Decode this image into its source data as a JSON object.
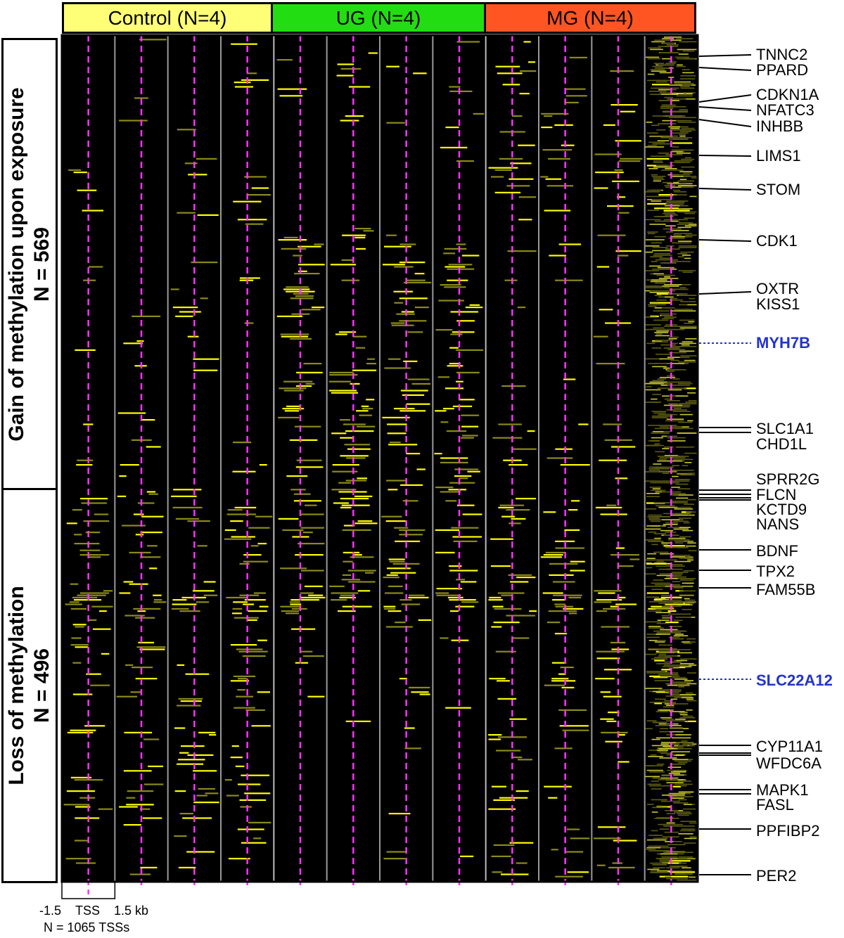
{
  "groups": [
    {
      "label": "Control (N=4)",
      "color": "#ffff77"
    },
    {
      "label": "UG (N=4)",
      "color": "#22dd11"
    },
    {
      "label": "MG (N=4)",
      "color": "#ff5522"
    }
  ],
  "side_labels": {
    "gain_line1": "Gain of methylation upon exposure",
    "gain_line2": "N = 569",
    "loss_line1": "Loss of methylation",
    "loss_line2": "N = 496"
  },
  "footer": {
    "left_tick": "-1.5",
    "tss": "TSS",
    "right_tick": "1.5 kb",
    "n_tss": "N = 1065 TSSs"
  },
  "colors": {
    "heat_background": "#000000",
    "heat_high": "#ffff00",
    "tss_line": "#ff33ff",
    "column_divider": "#999999",
    "highlight_gene": "#2233cc"
  },
  "chart_data": {
    "type": "heatmap",
    "title": "",
    "columns_per_group": 4,
    "column_groups": [
      "Control (N=4)",
      "UG (N=4)",
      "MG (N=4)"
    ],
    "extra_column": "mean profile",
    "x_range_kb": [
      -1.5,
      1.5
    ],
    "x_center_label": "TSS",
    "total_rows": 1065,
    "row_blocks": [
      {
        "name": "Gain of methylation upon exposure",
        "n": 569
      },
      {
        "name": "Loss of methylation",
        "n": 496
      }
    ],
    "gene_labels": [
      {
        "name": "TNNC2",
        "row_fraction": 0.02
      },
      {
        "name": "PPARD",
        "row_fraction": 0.038
      },
      {
        "name": "CDKN1A",
        "row_fraction": 0.075
      },
      {
        "name": "NFATC3",
        "row_fraction": 0.082
      },
      {
        "name": "INHBB",
        "row_fraction": 0.1
      },
      {
        "name": "LIMS1",
        "row_fraction": 0.143
      },
      {
        "name": "STOM",
        "row_fraction": 0.183
      },
      {
        "name": "CDK1",
        "row_fraction": 0.243
      },
      {
        "name": "OXTR",
        "row_fraction": 0.31
      },
      {
        "name": "KISS1",
        "row_fraction": 0.31
      },
      {
        "name": "MYH7B",
        "row_fraction": 0.37,
        "highlight": true
      },
      {
        "name": "SLC1A1",
        "row_fraction": 0.47
      },
      {
        "name": "CHD1L",
        "row_fraction": 0.475
      },
      {
        "name": "SPRR2G",
        "row_fraction": 0.53
      },
      {
        "name": "FLCN",
        "row_fraction": 0.535
      },
      {
        "name": "KCTD9",
        "row_fraction": 0.538
      },
      {
        "name": "NANS",
        "row_fraction": 0.54
      },
      {
        "name": "BDNF",
        "row_fraction": 0.6
      },
      {
        "name": "TPX2",
        "row_fraction": 0.627
      },
      {
        "name": "FAM55B",
        "row_fraction": 0.65
      },
      {
        "name": "SLC22A12",
        "row_fraction": 0.75,
        "highlight": true
      },
      {
        "name": "CYP11A1",
        "row_fraction": 0.847
      },
      {
        "name": "WFDC6A",
        "row_fraction": 0.851
      },
      {
        "name": "MAPK1",
        "row_fraction": 0.895
      },
      {
        "name": "FASL",
        "row_fraction": 0.9
      },
      {
        "name": "PPFIBP2",
        "row_fraction": 0.93
      },
      {
        "name": "PER2",
        "row_fraction": 0.99
      }
    ]
  }
}
